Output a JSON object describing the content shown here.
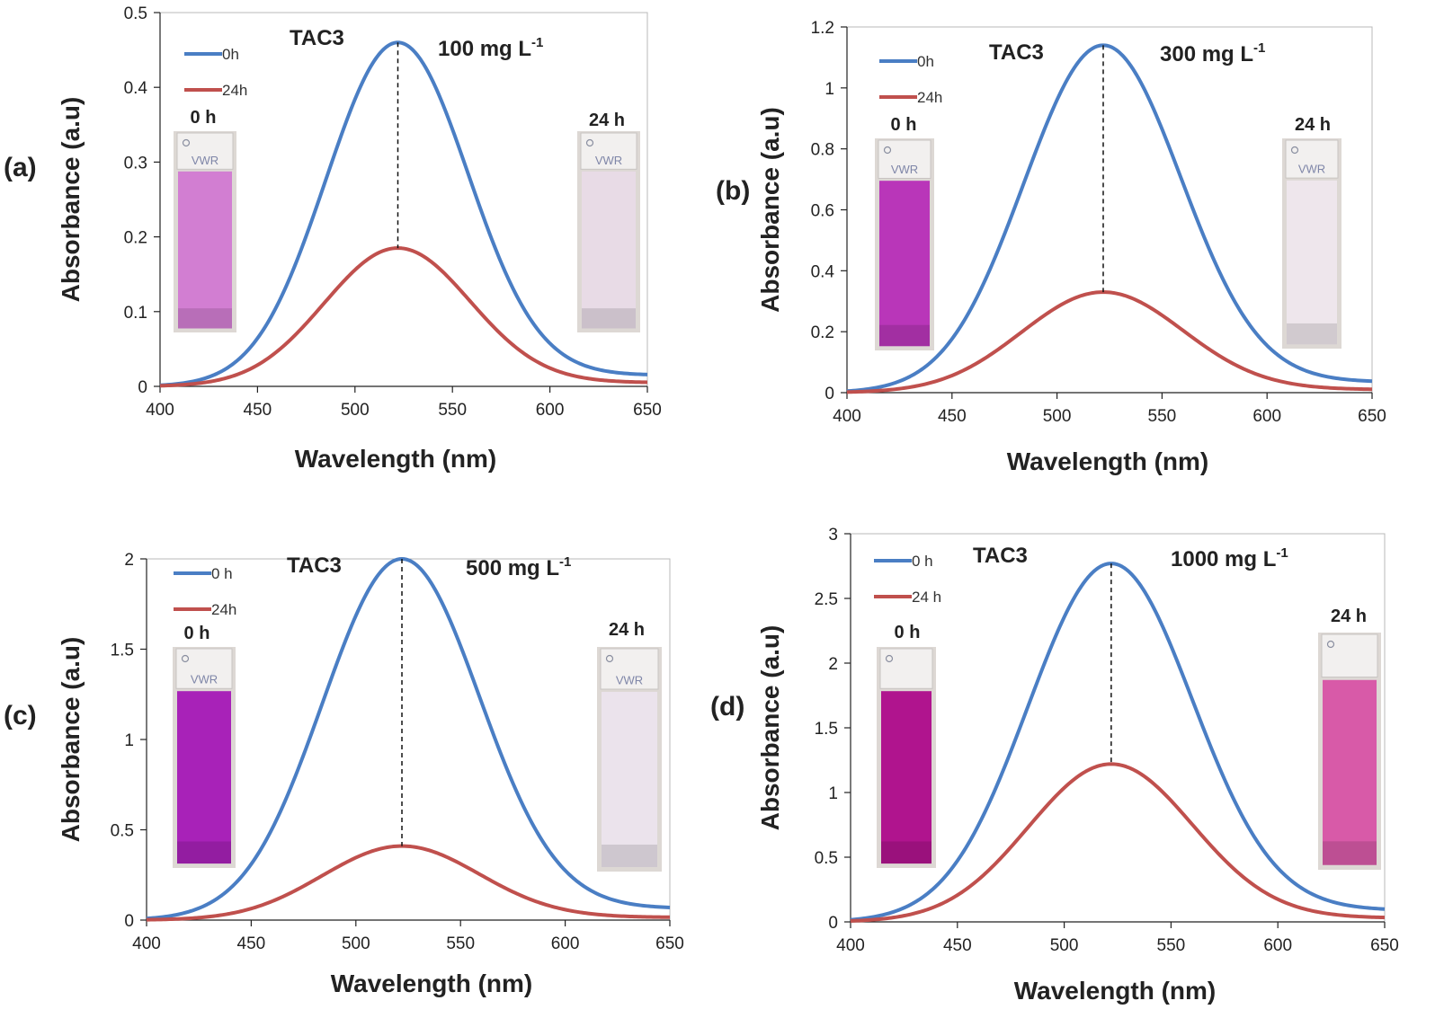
{
  "chart_data": [
    {
      "type": "line",
      "panel_label": "(a)",
      "sample": "TAC3",
      "concentration": {
        "text": "100 mg L",
        "sup": "-1"
      },
      "xlabel": "Wavelength (nm)",
      "ylabel": "Absorbance (a.u)",
      "xlim": [
        400,
        650
      ],
      "ylim": [
        0,
        0.5
      ],
      "xticks": [
        "400",
        "450",
        "500",
        "550",
        "600",
        "650"
      ],
      "yticks": [
        "0",
        "0.1",
        "0.2",
        "0.3",
        "0.4",
        "0.5"
      ],
      "peak_wavelength": 522,
      "series": [
        {
          "name": "0h",
          "color": "#4a7ec4",
          "peak": 0.46,
          "width": 36,
          "baseline": 0.015
        },
        {
          "name": "24h",
          "color": "#c0504d",
          "peak": 0.185,
          "width": 37,
          "baseline": 0.005
        }
      ],
      "inset_labels": [
        "0 h",
        "24 h"
      ],
      "cuvette_text": "VWR",
      "cuvette_colors": [
        "#d27ed2",
        "#e8dbe6"
      ]
    },
    {
      "type": "line",
      "panel_label": "(b)",
      "sample": "TAC3",
      "concentration": {
        "text": "300 mg L",
        "sup": "-1"
      },
      "xlabel": "Wavelength (nm)",
      "ylabel": "Absorbance (a.u)",
      "xlim": [
        400,
        650
      ],
      "ylim": [
        0,
        1.2
      ],
      "xticks": [
        "400",
        "450",
        "500",
        "550",
        "600",
        "650"
      ],
      "yticks": [
        "0",
        "0.2",
        "0.4",
        "0.6",
        "0.8",
        "1",
        "1.2"
      ],
      "peak_wavelength": 522,
      "series": [
        {
          "name": "0h",
          "color": "#4a7ec4",
          "peak": 1.14,
          "width": 37,
          "baseline": 0.035
        },
        {
          "name": "24h",
          "color": "#c0504d",
          "peak": 0.33,
          "width": 38,
          "baseline": 0.01
        }
      ],
      "inset_labels": [
        "0 h",
        "24 h"
      ],
      "cuvette_text": "VWR",
      "cuvette_colors": [
        "#b936b9",
        "#eee6ec"
      ]
    },
    {
      "type": "line",
      "panel_label": "(c)",
      "sample": "TAC3",
      "concentration": {
        "text": "500 mg L",
        "sup": "-1"
      },
      "xlabel": "Wavelength (nm)",
      "ylabel": "Absorbance (a.u)",
      "xlim": [
        400,
        650
      ],
      "ylim": [
        0,
        2
      ],
      "xticks": [
        "400",
        "450",
        "500",
        "550",
        "600",
        "650"
      ],
      "yticks": [
        "0",
        "0.5",
        "1",
        "1.5",
        "2"
      ],
      "peak_wavelength": 522,
      "series": [
        {
          "name": "0 h",
          "color": "#4a7ec4",
          "peak": 2.0,
          "width": 37,
          "baseline": 0.065
        },
        {
          "name": "24h",
          "color": "#c0504d",
          "peak": 0.41,
          "width": 37,
          "baseline": 0.015
        }
      ],
      "inset_labels": [
        "0 h",
        "24 h"
      ],
      "cuvette_text": "VWR",
      "cuvette_colors": [
        "#a822b8",
        "#ebe3ec"
      ]
    },
    {
      "type": "line",
      "panel_label": "(d)",
      "sample": "TAC3",
      "concentration": {
        "text": "1000 mg L",
        "sup": "-1"
      },
      "xlabel": "Wavelength (nm)",
      "ylabel": "Absorbance (a.u)",
      "xlim": [
        400,
        650
      ],
      "ylim": [
        0,
        3
      ],
      "xticks": [
        "400",
        "450",
        "500",
        "550",
        "600",
        "650"
      ],
      "yticks": [
        "0",
        "0.5",
        "1",
        "1.5",
        "2",
        "2.5",
        "3"
      ],
      "peak_wavelength": 522,
      "series": [
        {
          "name": "0 h",
          "color": "#4a7ec4",
          "peak": 2.77,
          "width": 38,
          "baseline": 0.09
        },
        {
          "name": "24 h",
          "color": "#c0504d",
          "peak": 1.22,
          "width": 38,
          "baseline": 0.03
        }
      ],
      "inset_labels": [
        "0 h",
        "24 h"
      ],
      "cuvette_text": "",
      "cuvette_colors": [
        "#b0148e",
        "#d85aa8"
      ]
    }
  ]
}
